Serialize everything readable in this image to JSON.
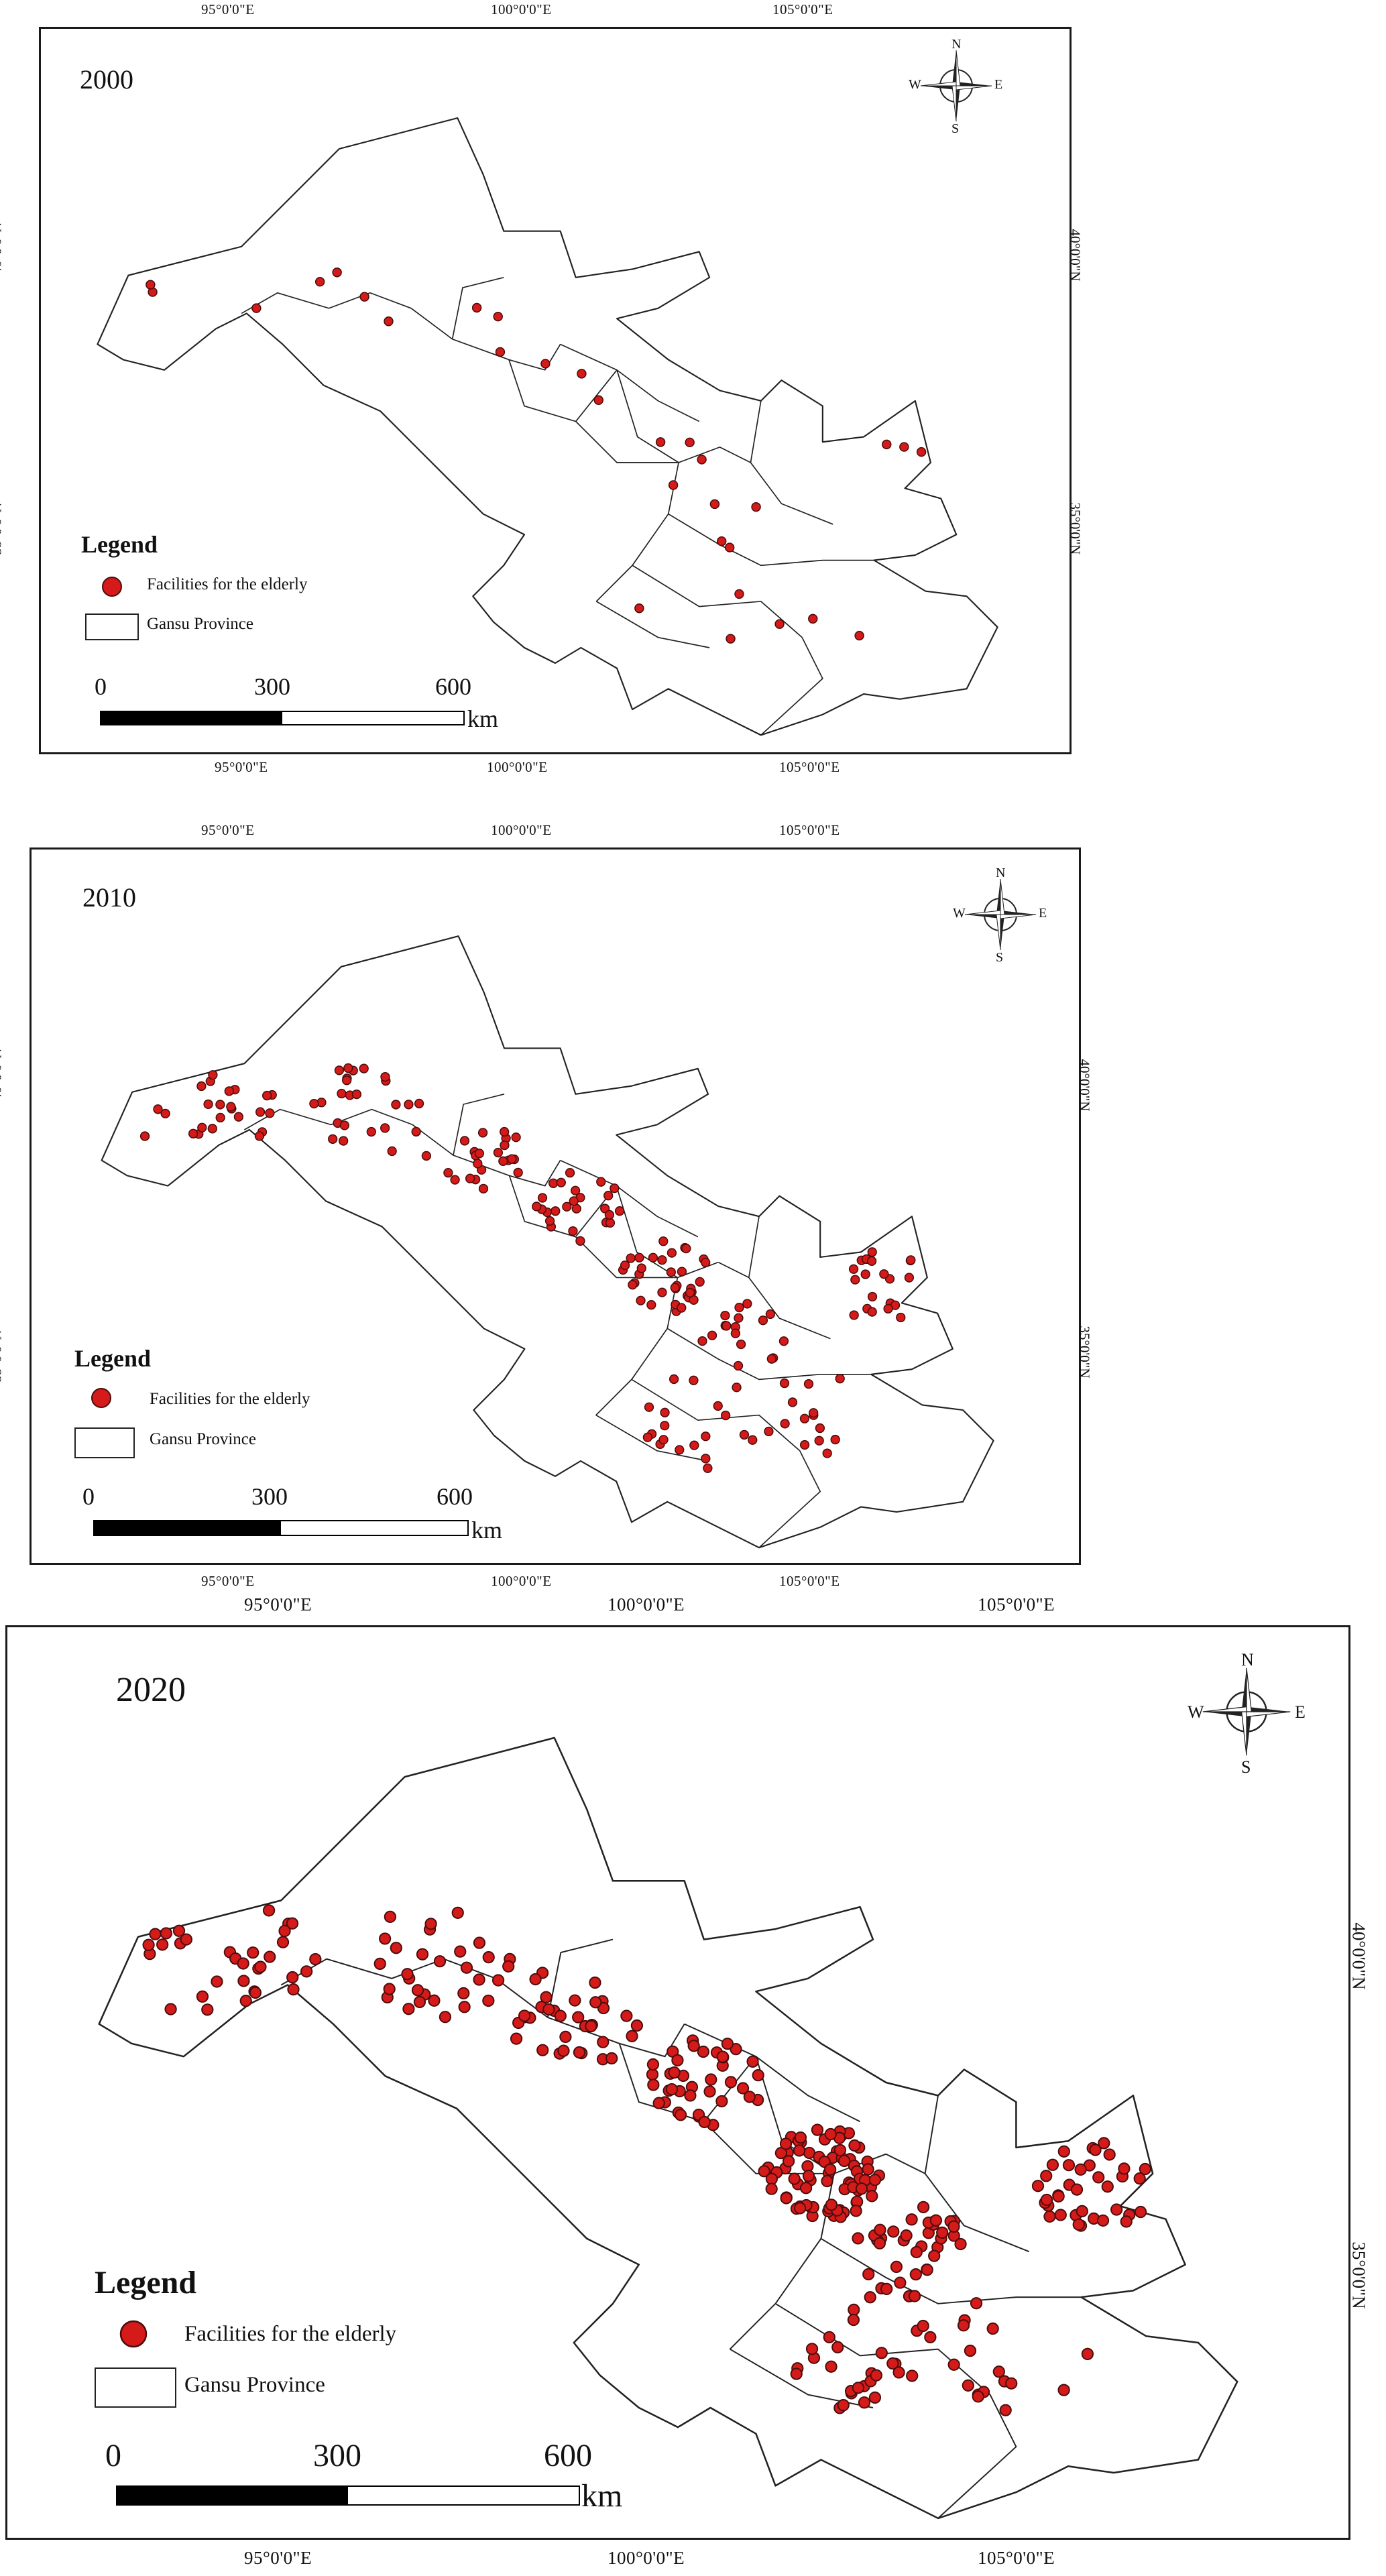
{
  "panels": [
    {
      "year": "2000",
      "lon_labels": [
        "95°0'0\"E",
        "100°0'0\"E",
        "105°0'0\"E"
      ],
      "lat_labels": [
        "40°0'0\"N",
        "35°0'0\"N"
      ],
      "facility_count_shown": 30
    },
    {
      "year": "2010",
      "lon_labels": [
        "95°0'0\"E",
        "100°0'0\"E",
        "105°0'0\"E"
      ],
      "lat_labels": [
        "40°0'0\"N",
        "35°0'0\"N"
      ],
      "facility_count_shown": 200
    },
    {
      "year": "2020",
      "lon_labels": [
        "95°0'0\"E",
        "100°0'0\"E",
        "105°0'0\"E"
      ],
      "lat_labels": [
        "40°0'0\"N",
        "35°0'0\"N"
      ],
      "facility_count_shown": 330
    }
  ],
  "legend": {
    "title": "Legend",
    "facility_label": "Facilities for the elderly",
    "boundary_label": "Gansu Province"
  },
  "scale_bar": {
    "ticks": [
      "0",
      "300",
      "600"
    ],
    "unit": "km"
  },
  "compass": {
    "n": "N",
    "s": "S",
    "e": "E",
    "w": "W"
  },
  "colors": {
    "facility_fill": "#d51a1a",
    "facility_stroke": "#4a0c0c",
    "boundary": "#222222",
    "land": "#ffffff"
  }
}
